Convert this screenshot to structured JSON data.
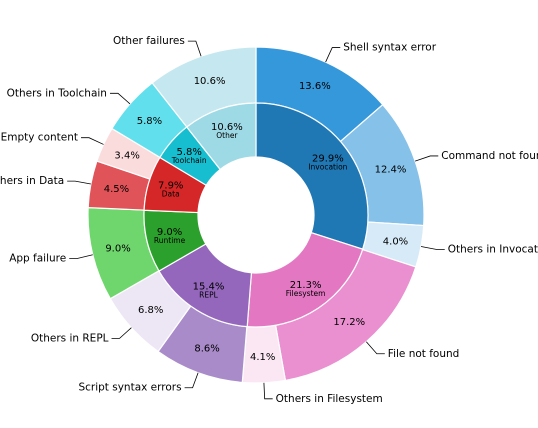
{
  "chart_data": {
    "type": "pie",
    "subtype": "nested-donut",
    "title": "",
    "inner_ring": [
      {
        "label": "Invocation",
        "value": 29.9,
        "pct_label": "29.9%",
        "color": "#1f77b4"
      },
      {
        "label": "Filesystem",
        "value": 21.3,
        "pct_label": "21.3%",
        "color": "#e377c2"
      },
      {
        "label": "REPL",
        "value": 15.4,
        "pct_label": "15.4%",
        "color": "#9467bd"
      },
      {
        "label": "Runtime",
        "value": 9.0,
        "pct_label": "9.0%",
        "color": "#2ca02c"
      },
      {
        "label": "Data",
        "value": 7.9,
        "pct_label": "7.9%",
        "color": "#d62728"
      },
      {
        "label": "Toolchain",
        "value": 5.8,
        "pct_label": "5.8%",
        "color": "#17becf"
      },
      {
        "label": "Other",
        "value": 10.6,
        "pct_label": "10.6%",
        "color": "#9edae5"
      }
    ],
    "outer_ring": [
      {
        "label": "Shell syntax error",
        "value": 13.6,
        "pct_label": "13.6%",
        "color": "#3498db"
      },
      {
        "label": "Command not found",
        "value": 12.4,
        "pct_label": "12.4%",
        "color": "#85c1e9"
      },
      {
        "label": "Others in Invocation",
        "value": 4.0,
        "pct_label": "4.0%",
        "color": "#d6eaf8"
      },
      {
        "label": "File not found",
        "value": 17.2,
        "pct_label": "17.2%",
        "color": "#ea8fcf"
      },
      {
        "label": "Others in Filesystem",
        "value": 4.1,
        "pct_label": "4.1%",
        "color": "#fbe6f3"
      },
      {
        "label": "Script syntax errors",
        "value": 8.6,
        "pct_label": "8.6%",
        "color": "#a98bca"
      },
      {
        "label": "Others in REPL",
        "value": 6.8,
        "pct_label": "6.8%",
        "color": "#ede6f4"
      },
      {
        "label": "App failure",
        "value": 9.0,
        "pct_label": "9.0%",
        "color": "#6fd66e"
      },
      {
        "label": "Others in Data",
        "value": 4.5,
        "pct_label": "4.5%",
        "color": "#e05358"
      },
      {
        "label": "Empty content",
        "value": 3.4,
        "pct_label": "3.4%",
        "color": "#fbdcdd"
      },
      {
        "label": "Others in Toolchain",
        "value": 5.8,
        "pct_label": "5.8%",
        "color": "#62dfec"
      },
      {
        "label": "Other failures",
        "value": 10.6,
        "pct_label": "10.6%",
        "color": "#c5e7ef"
      }
    ]
  }
}
